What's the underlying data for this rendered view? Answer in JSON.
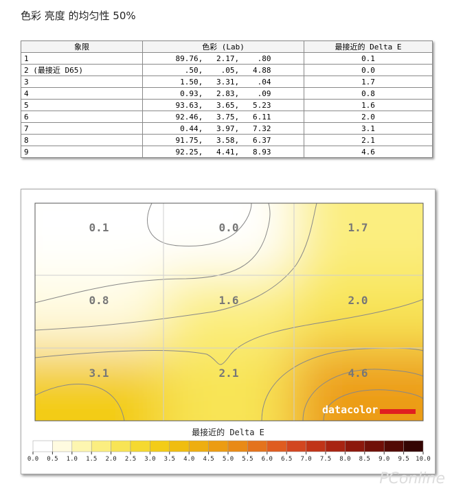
{
  "header": {
    "title": "色彩 亮度 的均匀性 50%"
  },
  "table": {
    "headers": [
      "象限",
      "色彩 (Lab)",
      "最接近的 Delta E"
    ],
    "rows": [
      [
        "1",
        "89.76,   2.17,    .80",
        "0.1"
      ],
      [
        "2 (最接近 D65)",
        "  .50,    .05,   4.88",
        "0.0"
      ],
      [
        "3",
        " 1.50,   3.31,    .04",
        "1.7"
      ],
      [
        "4",
        " 0.93,   2.83,    .09",
        "0.8"
      ],
      [
        "5",
        "93.63,   3.65,   5.23",
        "1.6"
      ],
      [
        "6",
        "92.46,   3.75,   6.11",
        "2.0"
      ],
      [
        "7",
        " 0.44,   3.97,   7.32",
        "3.1"
      ],
      [
        "8",
        "91.75,   3.58,   6.37",
        "2.1"
      ],
      [
        "9",
        "92.25,   4.41,   8.93",
        "4.6"
      ]
    ]
  },
  "heatmap": {
    "cells": [
      [
        "0.1",
        "0.0",
        "1.7"
      ],
      [
        "0.8",
        "1.6",
        "2.0"
      ],
      [
        "3.1",
        "2.1",
        "4.6"
      ]
    ],
    "logo": "datacolor",
    "legend_title": "最接近的 Delta E",
    "scale": [
      "0.0",
      "0.5",
      "1.0",
      "1.5",
      "2.0",
      "2.5",
      "3.0",
      "3.5",
      "4.0",
      "4.5",
      "5.0",
      "5.5",
      "6.0",
      "6.5",
      "7.0",
      "7.5",
      "8.0",
      "8.5",
      "9.0",
      "9.5",
      "10.0"
    ]
  },
  "watermark": "PConline"
}
